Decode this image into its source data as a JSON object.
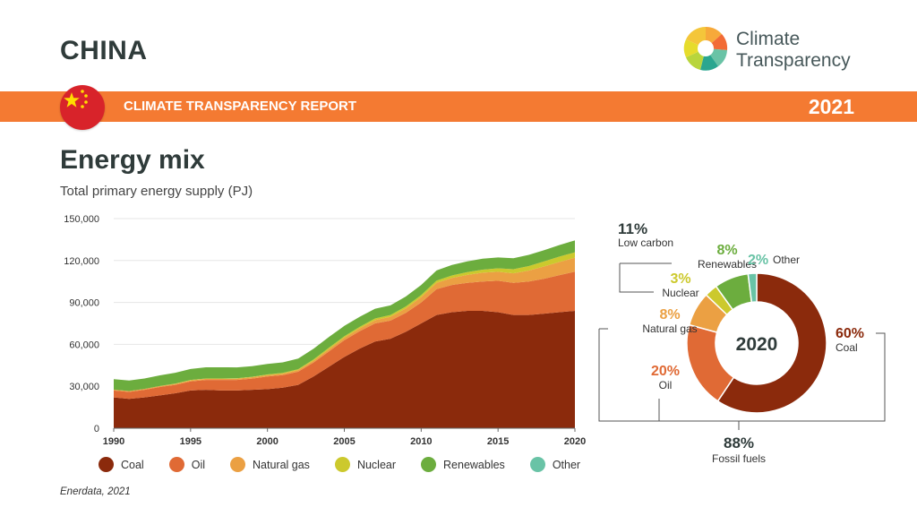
{
  "header": {
    "country": "CHINA",
    "logo_line1": "Climate",
    "logo_line2": "Transparency",
    "report_title": "CLIMATE TRANSPARENCY REPORT",
    "year": "2021"
  },
  "section": {
    "title": "Energy mix",
    "subtitle": "Total primary energy supply (PJ)"
  },
  "source": "Enerdata, 2021",
  "colors": {
    "coal": "#8b2a0c",
    "oil": "#e06a35",
    "gas": "#eba043",
    "nuclear": "#ccc92d",
    "renewables": "#6cad3e",
    "other": "#69c3a6",
    "banner": "#f47a32"
  },
  "chart_data": [
    {
      "type": "area",
      "stacked": true,
      "title": "",
      "xlabel": "",
      "ylabel": "",
      "ylim": [
        0,
        150000
      ],
      "yticks": [
        0,
        30000,
        60000,
        90000,
        120000,
        150000
      ],
      "ytick_labels": [
        "0",
        "30,000",
        "60,000",
        "90,000",
        "120,000",
        "150,000"
      ],
      "xticks": [
        1990,
        1995,
        2000,
        2005,
        2010,
        2015,
        2020
      ],
      "x": [
        1990,
        1991,
        1992,
        1993,
        1994,
        1995,
        1996,
        1997,
        1998,
        1999,
        2000,
        2001,
        2002,
        2003,
        2004,
        2005,
        2006,
        2007,
        2008,
        2009,
        2010,
        2011,
        2012,
        2013,
        2014,
        2015,
        2016,
        2017,
        2018,
        2019,
        2020
      ],
      "series": [
        {
          "name": "Coal",
          "color_key": "coal",
          "values": [
            22000,
            21000,
            22000,
            23500,
            25000,
            27000,
            27500,
            27000,
            27000,
            27500,
            28000,
            29000,
            31000,
            37000,
            44000,
            51000,
            57000,
            62000,
            64000,
            69000,
            75000,
            81000,
            83000,
            84000,
            84000,
            83000,
            81000,
            81000,
            82000,
            83000,
            84000
          ]
        },
        {
          "name": "Oil",
          "color_key": "oil",
          "values": [
            5000,
            5000,
            5500,
            6000,
            6000,
            6500,
            7000,
            7500,
            7500,
            8000,
            9000,
            9000,
            9500,
            10000,
            11000,
            12000,
            12500,
            13000,
            13000,
            13500,
            15000,
            18500,
            19500,
            20000,
            21000,
            22500,
            23000,
            24000,
            25000,
            26500,
            28000
          ]
        },
        {
          "name": "Natural gas",
          "color_key": "gas",
          "values": [
            600,
            600,
            600,
            600,
            700,
            700,
            800,
            800,
            900,
            1000,
            1000,
            1100,
            1200,
            1400,
            1600,
            1800,
            2000,
            2300,
            2700,
            3200,
            3800,
            4500,
            5000,
            5700,
            6300,
            6400,
            6800,
            7800,
            8800,
            9500,
            10000
          ]
        },
        {
          "name": "Nuclear",
          "color_key": "nuclear",
          "values": [
            0,
            0,
            0,
            100,
            200,
            300,
            300,
            300,
            300,
            300,
            500,
            500,
            500,
            800,
            1000,
            1000,
            1000,
            1200,
            1300,
            1400,
            1500,
            1600,
            1800,
            2000,
            2200,
            2500,
            3000,
            3200,
            3600,
            3800,
            3900
          ]
        },
        {
          "name": "Renewables",
          "color_key": "renewables",
          "values": [
            7500,
            7500,
            7500,
            7600,
            7800,
            7900,
            8000,
            8000,
            7800,
            7600,
            7500,
            7500,
            7600,
            7700,
            7700,
            7400,
            7200,
            7000,
            6900,
            7100,
            7200,
            7300,
            7500,
            7700,
            7800,
            7800,
            7800,
            8000,
            8000,
            8300,
            8500
          ]
        },
        {
          "name": "Other",
          "color_key": "other",
          "values": [
            0,
            0,
            0,
            0,
            0,
            0,
            0,
            0,
            0,
            0,
            0,
            0,
            0,
            0,
            0,
            0,
            0,
            0,
            0,
            0,
            0,
            0,
            0,
            0,
            0,
            0,
            0,
            0,
            0,
            0,
            0
          ]
        }
      ]
    },
    {
      "type": "pie",
      "donut": true,
      "center_label": "2020",
      "slices": [
        {
          "name": "Coal",
          "pct": 60,
          "label": "60%",
          "caption": "Coal",
          "color_key": "coal"
        },
        {
          "name": "Oil",
          "pct": 20,
          "label": "20%",
          "caption": "Oil",
          "color_key": "oil"
        },
        {
          "name": "Natural gas",
          "pct": 8,
          "label": "8%",
          "caption": "Natural gas",
          "color_key": "gas"
        },
        {
          "name": "Nuclear",
          "pct": 3,
          "label": "3%",
          "caption": "Nuclear",
          "color_key": "nuclear"
        },
        {
          "name": "Renewables",
          "pct": 8,
          "label": "8%",
          "caption": "Renewables",
          "color_key": "renewables"
        },
        {
          "name": "Other",
          "pct": 2,
          "label": "2%",
          "caption": "Other",
          "color_key": "other"
        }
      ],
      "groups": [
        {
          "label": "11%",
          "caption": "Low carbon"
        },
        {
          "label": "88%",
          "caption": "Fossil fuels"
        }
      ]
    }
  ],
  "legend": [
    {
      "label": "Coal",
      "color_key": "coal"
    },
    {
      "label": "Oil",
      "color_key": "oil"
    },
    {
      "label": "Natural gas",
      "color_key": "gas"
    },
    {
      "label": "Nuclear",
      "color_key": "nuclear"
    },
    {
      "label": "Renewables",
      "color_key": "renewables"
    },
    {
      "label": "Other",
      "color_key": "other"
    }
  ]
}
